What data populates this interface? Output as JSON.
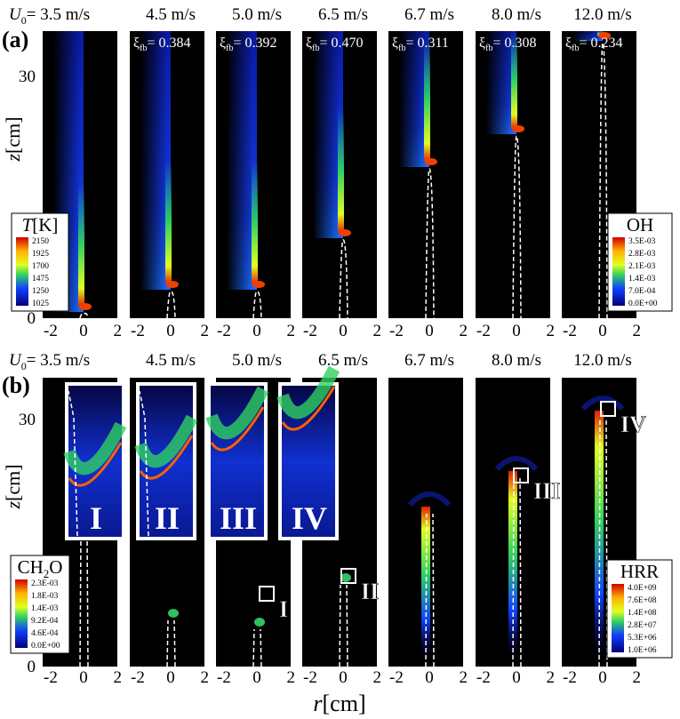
{
  "panel_a": {
    "label": "(a)",
    "velocity_symbol": "U",
    "velocity_subscript": "0",
    "velocities": [
      "= 3.5 m/s",
      "4.5 m/s",
      "5.0 m/s",
      "6.5 m/s",
      "6.7 m/s",
      "8.0 m/s",
      "12.0 m/s"
    ],
    "xi_symbol": "ξ",
    "xi_subscript": "fb",
    "xi_values": [
      "= 0.384",
      "= 0.392",
      "= 0.470",
      "= 0.311",
      "= 0.308",
      "= 0.234"
    ],
    "colorbar_left": {
      "symbol": "T",
      "unit": "[K]",
      "ticks": [
        "2150",
        "1925",
        "1700",
        "1475",
        "1250",
        "1025"
      ]
    },
    "colorbar_right": {
      "title": "OH",
      "ticks": [
        "3.5E-03",
        "2.8E-03",
        "2.1E-03",
        "1.4E-03",
        "7.0E-04",
        "0.0E+00"
      ]
    }
  },
  "panel_b": {
    "label": "(b)",
    "velocity_symbol": "U",
    "velocity_subscript": "0",
    "velocities": [
      "= 3.5 m/s",
      "4.5 m/s",
      "5.0 m/s",
      "6.5 m/s",
      "6.7 m/s",
      "8.0 m/s",
      "12.0 m/s"
    ],
    "inset_labels": [
      "I",
      "II",
      "III",
      "IV"
    ],
    "marker_labels": [
      "I",
      "II",
      "III",
      "IV"
    ],
    "colorbar_left": {
      "title_main": "CH",
      "title_sub": "2",
      "title_end": "O",
      "ticks": [
        "2.3E-03",
        "1.8E-03",
        "1.4E-03",
        "9.2E-04",
        "4.6E-04",
        "0.0E+00"
      ]
    },
    "colorbar_right": {
      "title": "HRR",
      "ticks": [
        "4.0E+09",
        "7.6E+08",
        "1.4E+08",
        "2.8E+07",
        "5.3E+06",
        "1.0E+06"
      ]
    }
  },
  "axes": {
    "z_symbol": "z",
    "z_unit": "[cm]",
    "z_ticks": [
      "0",
      "30"
    ],
    "x_ticks": [
      "-2",
      "0",
      "2"
    ],
    "r_symbol": "r",
    "r_unit": "[cm]"
  }
}
